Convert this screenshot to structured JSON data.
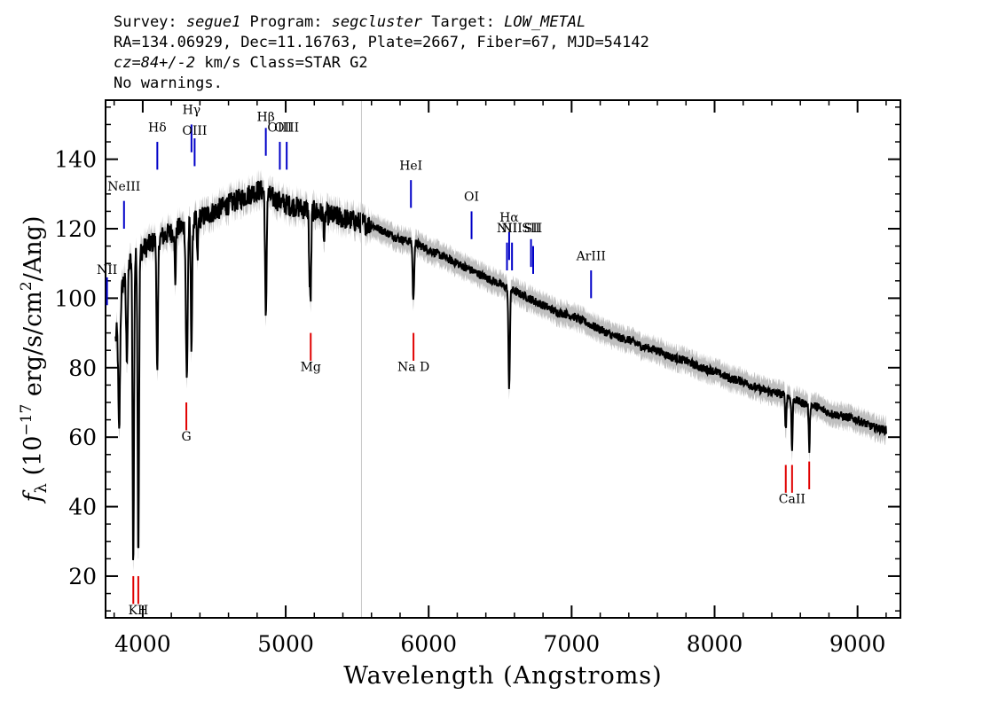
{
  "header": {
    "line1": {
      "survey_label": "Survey: ",
      "survey": "segue1",
      "program_label": " Program: ",
      "program": "segcluster",
      "target_label": " Target: ",
      "target": "LOW_METAL"
    },
    "line2": "RA=134.06929, Dec=11.16763, Plate=2667, Fiber=67, MJD=54142",
    "line3": {
      "cz": "cz=84+/-2",
      "rest": " km/s Class=STAR G2"
    },
    "line4": "No warnings."
  },
  "chart_data": {
    "type": "line",
    "xlabel": "Wavelength (Angstroms)",
    "ylabel_parts": {
      "f": "f",
      "sub": "λ",
      "a": " (10",
      "exp1": "−17",
      "b": " erg/s/cm",
      "exp2": "2",
      "c": "/Ang)"
    },
    "xlim": [
      3740,
      9300
    ],
    "ylim": [
      8,
      157
    ],
    "x_ticks": [
      4000,
      5000,
      6000,
      7000,
      8000,
      9000
    ],
    "y_ticks": [
      20,
      40,
      60,
      80,
      100,
      120,
      140
    ],
    "vline_x": 5530,
    "colors": {
      "flux": "#000000",
      "error_band": "#bfbfbf",
      "emission": "#0000c8",
      "absorption": "#e00000",
      "label": "#000000",
      "vline": "#c8c8c8"
    },
    "continuum": [
      [
        3810,
        88
      ],
      [
        3860,
        104
      ],
      [
        3900,
        110
      ],
      [
        4000,
        114
      ],
      [
        4100,
        117
      ],
      [
        4200,
        119
      ],
      [
        4300,
        121
      ],
      [
        4400,
        123
      ],
      [
        4500,
        125
      ],
      [
        4600,
        127
      ],
      [
        4700,
        129
      ],
      [
        4800,
        131
      ],
      [
        4850,
        131
      ],
      [
        4900,
        129
      ],
      [
        5000,
        127
      ],
      [
        5100,
        126
      ],
      [
        5200,
        125
      ],
      [
        5300,
        124
      ],
      [
        5400,
        123
      ],
      [
        5500,
        122
      ],
      [
        5600,
        121
      ],
      [
        5700,
        119
      ],
      [
        5800,
        117
      ],
      [
        5900,
        116
      ],
      [
        6000,
        114
      ],
      [
        6100,
        112
      ],
      [
        6200,
        110
      ],
      [
        6300,
        108
      ],
      [
        6400,
        106
      ],
      [
        6500,
        104
      ],
      [
        6600,
        102
      ],
      [
        6700,
        100
      ],
      [
        6800,
        98
      ],
      [
        6900,
        96
      ],
      [
        7000,
        95
      ],
      [
        7100,
        93
      ],
      [
        7200,
        91
      ],
      [
        7300,
        89
      ],
      [
        7400,
        88
      ],
      [
        7500,
        86
      ],
      [
        7600,
        85
      ],
      [
        7700,
        83
      ],
      [
        7800,
        82
      ],
      [
        7900,
        80
      ],
      [
        8000,
        79
      ],
      [
        8100,
        77
      ],
      [
        8200,
        76
      ],
      [
        8300,
        74
      ],
      [
        8400,
        73
      ],
      [
        8500,
        72
      ],
      [
        8600,
        70
      ],
      [
        8700,
        69
      ],
      [
        8800,
        67
      ],
      [
        8900,
        66
      ],
      [
        9000,
        65
      ],
      [
        9100,
        63
      ],
      [
        9200,
        62
      ]
    ],
    "absorption_features": [
      {
        "x": 3835,
        "depth": 35,
        "width": 6
      },
      {
        "x": 3889,
        "depth": 25,
        "width": 6
      },
      {
        "x": 3934,
        "depth": 88,
        "width": 5
      },
      {
        "x": 3969,
        "depth": 85,
        "width": 5
      },
      {
        "x": 4102,
        "depth": 40,
        "width": 5
      },
      {
        "x": 4227,
        "depth": 15,
        "width": 4
      },
      {
        "x": 4308,
        "depth": 45,
        "width": 6
      },
      {
        "x": 4341,
        "depth": 35,
        "width": 5
      },
      {
        "x": 4383,
        "depth": 12,
        "width": 4
      },
      {
        "x": 4861,
        "depth": 38,
        "width": 5
      },
      {
        "x": 5167,
        "depth": 18,
        "width": 4
      },
      {
        "x": 5175,
        "depth": 22,
        "width": 4
      },
      {
        "x": 5270,
        "depth": 8,
        "width": 4
      },
      {
        "x": 5893,
        "depth": 17,
        "width": 5
      },
      {
        "x": 6563,
        "depth": 28,
        "width": 5
      },
      {
        "x": 8498,
        "depth": 10,
        "width": 4
      },
      {
        "x": 8542,
        "depth": 15,
        "width": 4
      },
      {
        "x": 8662,
        "depth": 13,
        "width": 4
      }
    ],
    "noise_amplitude": 4.5,
    "error_band_halfwidth": 3.2,
    "emission_lines": [
      {
        "label": "NeIII",
        "x": 3869,
        "y0": 120,
        "y1": 128,
        "label_y": 131
      },
      {
        "label": "Hδ",
        "x": 4102,
        "y0": 137,
        "y1": 145,
        "label_y": 148
      },
      {
        "label": "Hγ",
        "x": 4341,
        "y0": 142,
        "y1": 150,
        "label_y": 153
      },
      {
        "label": "OIII",
        "x": 4363,
        "y0": 138,
        "y1": 146,
        "label_y": 147
      },
      {
        "label": "Hβ",
        "x": 4861,
        "y0": 141,
        "y1": 149,
        "label_y": 151
      },
      {
        "label": "OIII",
        "x": 4959,
        "y0": 137,
        "y1": 145,
        "label_y": 148
      },
      {
        "label": "OIII",
        "x": 5007,
        "y0": 137,
        "y1": 145,
        "label_y": 148
      },
      {
        "label": "HeI",
        "x": 5876,
        "y0": 126,
        "y1": 134,
        "label_y": 137
      },
      {
        "label": "OI",
        "x": 6300,
        "y0": 117,
        "y1": 125,
        "label_y": 128
      },
      {
        "label": "NII",
        "x": 6548,
        "y0": 108,
        "y1": 116,
        "label_y": 119
      },
      {
        "label": "Hα",
        "x": 6563,
        "y0": 111,
        "y1": 119,
        "label_y": 122
      },
      {
        "label": "NII",
        "x": 6583,
        "y0": 108,
        "y1": 116,
        "label_y": 119
      },
      {
        "label": "SII",
        "x": 6716,
        "y0": 109,
        "y1": 117,
        "label_y": 119
      },
      {
        "label": "SII",
        "x": 6731,
        "y0": 107,
        "y1": 115,
        "label_y": 119
      },
      {
        "label": "ArIII",
        "x": 7136,
        "y0": 100,
        "y1": 108,
        "label_y": 111
      },
      {
        "label": "NII",
        "x": 3750,
        "y0": 98,
        "y1": 106,
        "label_y": 107
      }
    ],
    "absorption_lines": [
      {
        "label": "",
        "x": 3934,
        "y0": 12,
        "y1": 20,
        "label_y": 0
      },
      {
        "label": "KH",
        "x": 3969,
        "y0": 12,
        "y1": 20,
        "label_y": 9
      },
      {
        "label": "G",
        "x": 4305,
        "y0": 62,
        "y1": 70,
        "label_y": 59
      },
      {
        "label": "Mg",
        "x": 5175,
        "y0": 82,
        "y1": 90,
        "label_y": 79
      },
      {
        "label": "Na D",
        "x": 5894,
        "y0": 82,
        "y1": 90,
        "label_y": 79
      },
      {
        "label": "",
        "x": 8498,
        "y0": 44,
        "y1": 52,
        "label_y": 0
      },
      {
        "label": "CaII",
        "x": 8542,
        "y0": 44,
        "y1": 52,
        "label_y": 41
      },
      {
        "label": "",
        "x": 8662,
        "y0": 45,
        "y1": 53,
        "label_y": 0
      }
    ]
  }
}
